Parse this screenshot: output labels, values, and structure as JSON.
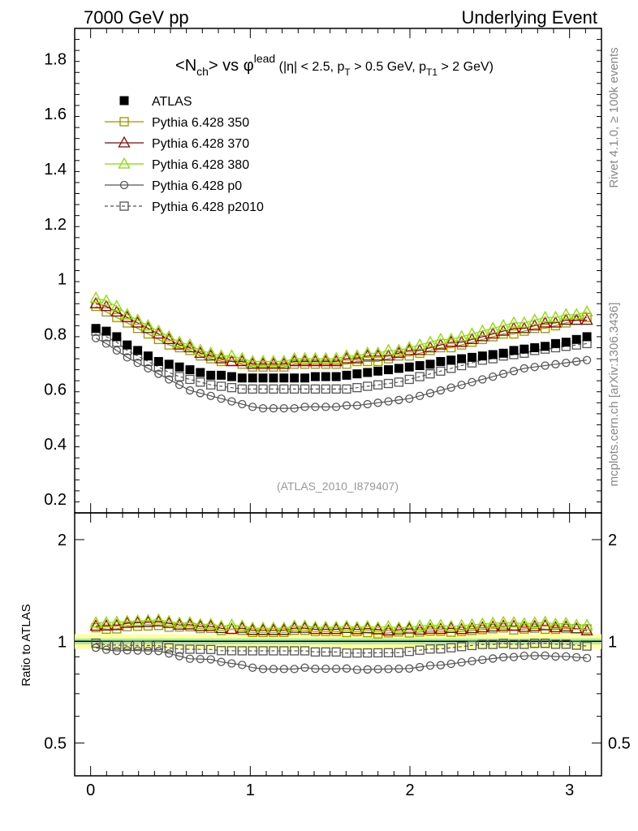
{
  "header": {
    "left": "7000 GeV pp",
    "right": "Underlying Event"
  },
  "side_labels": {
    "rivet": "Rivet 4.1.0, ≥ 100k events",
    "mcplots": "mcplots.cern.ch [arXiv:1306.3436]"
  },
  "chart_data": {
    "type": "scatter",
    "title_parts": {
      "open": "<N",
      "sub1": "ch",
      "mid": "> vs ",
      "phi": "φ",
      "sup": "lead",
      "cut1": " (|η| < 2.5, p",
      "sub2": "T",
      "cut2": " > 0.5 GeV, p",
      "sub3": "T1",
      "cut3": " > 2 GeV)"
    },
    "analysis_tag": "(ATLAS_2010_I879407)",
    "ratio_ylabel": "Ratio to ATLAS",
    "xlim": [
      -0.1,
      3.2
    ],
    "main_ylim": [
      0.15,
      1.91
    ],
    "ratio_ylim": [
      0.4,
      2.4
    ],
    "ratio_yscale": "log",
    "main_yticks": [
      "0.2",
      "0.4",
      "0.6",
      "0.8",
      "1",
      "1.2",
      "1.4",
      "1.6",
      "1.8"
    ],
    "ratio_yticks": [
      "0.5",
      "1",
      "2"
    ],
    "xticks": [
      "0",
      "1",
      "2",
      "3"
    ],
    "x": [
      0.0327,
      0.0982,
      0.1636,
      0.2291,
      0.2945,
      0.36,
      0.4254,
      0.4909,
      0.5563,
      0.6218,
      0.6872,
      0.7527,
      0.8181,
      0.8836,
      0.949,
      1.0145,
      1.0799,
      1.1454,
      1.2108,
      1.2763,
      1.3417,
      1.4072,
      1.4726,
      1.5381,
      1.6035,
      1.669,
      1.7344,
      1.7999,
      1.8653,
      1.9308,
      1.9962,
      2.0617,
      2.1271,
      2.1926,
      2.258,
      2.3235,
      2.3889,
      2.4544,
      2.5198,
      2.5853,
      2.6507,
      2.7162,
      2.7816,
      2.8471,
      2.9125,
      2.978,
      3.0434,
      3.1089
    ],
    "legend": [
      "ATLAS",
      "Pythia 6.428 350",
      "Pythia 6.428 370",
      "Pythia 6.428 380",
      "Pythia 6.428 p0",
      "Pythia 6.428 p2010"
    ],
    "series": [
      {
        "name": "ATLAS",
        "color": "#000000",
        "marker": "filled-square",
        "values": [
          0.82,
          0.81,
          0.79,
          0.76,
          0.74,
          0.72,
          0.7,
          0.69,
          0.68,
          0.67,
          0.66,
          0.65,
          0.65,
          0.645,
          0.64,
          0.64,
          0.64,
          0.64,
          0.64,
          0.64,
          0.64,
          0.645,
          0.645,
          0.645,
          0.65,
          0.655,
          0.66,
          0.665,
          0.67,
          0.675,
          0.68,
          0.685,
          0.69,
          0.7,
          0.705,
          0.71,
          0.715,
          0.72,
          0.725,
          0.73,
          0.74,
          0.745,
          0.75,
          0.755,
          0.765,
          0.77,
          0.78,
          0.79
        ]
      },
      {
        "name": "Pythia 6.428 350",
        "color": "#999900",
        "marker": "open-square",
        "values": [
          0.9,
          0.88,
          0.86,
          0.84,
          0.82,
          0.8,
          0.78,
          0.76,
          0.75,
          0.74,
          0.72,
          0.71,
          0.7,
          0.7,
          0.69,
          0.68,
          0.68,
          0.68,
          0.68,
          0.69,
          0.69,
          0.69,
          0.69,
          0.69,
          0.69,
          0.7,
          0.7,
          0.7,
          0.71,
          0.72,
          0.72,
          0.73,
          0.74,
          0.75,
          0.75,
          0.76,
          0.77,
          0.78,
          0.79,
          0.8,
          0.8,
          0.81,
          0.82,
          0.82,
          0.83,
          0.84,
          0.85,
          0.86
        ]
      },
      {
        "name": "Pythia 6.428 370",
        "color": "#990000",
        "marker": "open-triangle",
        "values": [
          0.91,
          0.9,
          0.88,
          0.86,
          0.84,
          0.82,
          0.8,
          0.78,
          0.76,
          0.75,
          0.73,
          0.72,
          0.71,
          0.7,
          0.7,
          0.69,
          0.69,
          0.69,
          0.69,
          0.7,
          0.7,
          0.7,
          0.7,
          0.7,
          0.71,
          0.71,
          0.72,
          0.72,
          0.72,
          0.73,
          0.74,
          0.74,
          0.75,
          0.76,
          0.77,
          0.77,
          0.78,
          0.79,
          0.8,
          0.81,
          0.82,
          0.82,
          0.83,
          0.84,
          0.84,
          0.85,
          0.85,
          0.85
        ]
      },
      {
        "name": "Pythia 6.428 380",
        "color": "#88dd00",
        "marker": "open-triangle",
        "values": [
          0.93,
          0.92,
          0.9,
          0.87,
          0.85,
          0.83,
          0.81,
          0.79,
          0.77,
          0.76,
          0.74,
          0.73,
          0.72,
          0.72,
          0.71,
          0.7,
          0.7,
          0.7,
          0.7,
          0.71,
          0.71,
          0.71,
          0.71,
          0.71,
          0.72,
          0.72,
          0.73,
          0.73,
          0.74,
          0.74,
          0.75,
          0.76,
          0.77,
          0.78,
          0.78,
          0.79,
          0.8,
          0.81,
          0.82,
          0.83,
          0.84,
          0.84,
          0.85,
          0.86,
          0.86,
          0.87,
          0.87,
          0.88
        ]
      },
      {
        "name": "Pythia 6.428 p0",
        "color": "#555555",
        "marker": "open-circle",
        "values": [
          0.785,
          0.765,
          0.74,
          0.715,
          0.695,
          0.675,
          0.655,
          0.635,
          0.615,
          0.595,
          0.585,
          0.575,
          0.565,
          0.555,
          0.545,
          0.535,
          0.53,
          0.53,
          0.53,
          0.53,
          0.535,
          0.535,
          0.535,
          0.535,
          0.54,
          0.54,
          0.545,
          0.55,
          0.555,
          0.56,
          0.565,
          0.575,
          0.585,
          0.595,
          0.605,
          0.615,
          0.625,
          0.635,
          0.645,
          0.655,
          0.665,
          0.675,
          0.68,
          0.685,
          0.69,
          0.695,
          0.7,
          0.705
        ]
      },
      {
        "name": "Pythia 6.428 p2010",
        "color": "#555555",
        "marker": "dashed-open-square",
        "values": [
          0.81,
          0.79,
          0.77,
          0.74,
          0.72,
          0.7,
          0.68,
          0.66,
          0.645,
          0.635,
          0.625,
          0.615,
          0.61,
          0.605,
          0.6,
          0.6,
          0.6,
          0.6,
          0.6,
          0.6,
          0.6,
          0.6,
          0.6,
          0.6,
          0.6,
          0.605,
          0.61,
          0.615,
          0.62,
          0.625,
          0.635,
          0.645,
          0.655,
          0.665,
          0.675,
          0.685,
          0.695,
          0.705,
          0.71,
          0.72,
          0.725,
          0.73,
          0.74,
          0.745,
          0.75,
          0.755,
          0.76,
          0.765
        ]
      }
    ]
  }
}
